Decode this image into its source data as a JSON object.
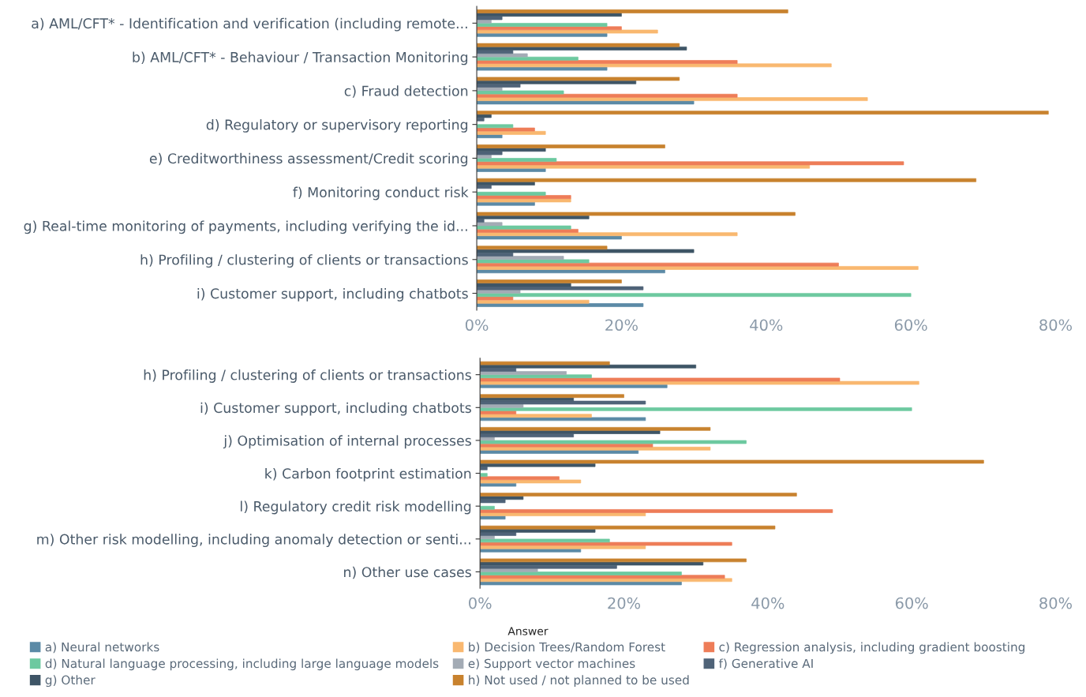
{
  "chart_data": [
    {
      "type": "bar",
      "orientation": "horizontal",
      "categories": [
        "a) AML/CFT* - Identification and verification (including remote...",
        "b) AML/CFT* - Behaviour / Transaction Monitoring",
        "c) Fraud detection",
        "d) Regulatory or supervisory reporting",
        "e) Creditworthiness assessment/Credit scoring",
        "f) Monitoring conduct risk",
        "g) Real-time monitoring of payments, including verifying the id...",
        "h) Profiling / clustering of clients or transactions",
        "i) Customer support, including chatbots"
      ],
      "xlim": [
        0,
        80
      ],
      "xticks": [
        {
          "value": 0,
          "label": "0%"
        },
        {
          "value": 20,
          "label": "20%"
        },
        {
          "value": 40,
          "label": "40%"
        },
        {
          "value": 60,
          "label": "60%"
        },
        {
          "value": 80,
          "label": "80%"
        }
      ],
      "grid": false,
      "series": [
        {
          "color": "#5b8aa6",
          "values": [
            18,
            18,
            30,
            3.5,
            9.5,
            8,
            20,
            26,
            23
          ]
        },
        {
          "color": "#f9b870",
          "values": [
            25,
            49,
            54,
            9.5,
            46,
            13,
            36,
            61,
            15.5
          ]
        },
        {
          "color": "#ee7d58",
          "values": [
            20,
            36,
            36,
            8,
            59,
            13,
            14,
            50,
            5
          ]
        },
        {
          "color": "#6dc9a0",
          "values": [
            18,
            14,
            12,
            5,
            11,
            9.5,
            13,
            15.5,
            60
          ]
        },
        {
          "color": "#a3abb5",
          "values": [
            2,
            7,
            3.5,
            0,
            2,
            0,
            3.5,
            12,
            6
          ]
        },
        {
          "color": "#4f6378",
          "values": [
            3.5,
            5,
            6,
            1,
            3.5,
            2,
            1,
            5,
            23
          ]
        },
        {
          "color": "#3e5566",
          "values": [
            20,
            29,
            22,
            2,
            9.5,
            8,
            15.5,
            30,
            13
          ]
        },
        {
          "color": "#c8822e",
          "values": [
            43,
            28,
            28,
            79,
            26,
            69,
            44,
            18,
            20
          ]
        }
      ]
    },
    {
      "type": "bar",
      "orientation": "horizontal",
      "legend": "bottom",
      "legend_title": "Answer",
      "categories": [
        "h) Profiling / clustering of clients or transactions",
        "i) Customer support, including chatbots",
        "j) Optimisation of internal processes",
        "k) Carbon footprint estimation",
        "l) Regulatory credit risk modelling",
        "m) Other risk modelling, including anomaly detection or senti...",
        "n) Other use cases"
      ],
      "xlim": [
        0,
        80
      ],
      "xticks": [
        {
          "value": 0,
          "label": "0%"
        },
        {
          "value": 20,
          "label": "20%"
        },
        {
          "value": 40,
          "label": "40%"
        },
        {
          "value": 60,
          "label": "60%"
        },
        {
          "value": 80,
          "label": "80%"
        }
      ],
      "grid": false,
      "series": [
        {
          "name": "a) Neural networks",
          "color": "#5b8aa6",
          "values": [
            26,
            23,
            22,
            5,
            3.5,
            14,
            28
          ]
        },
        {
          "name": "b) Decision Trees/Random Forest",
          "color": "#f9b870",
          "values": [
            61,
            15.5,
            32,
            14,
            23,
            23,
            35
          ]
        },
        {
          "name": "c) Regression analysis, including gradient boosting",
          "color": "#ee7d58",
          "values": [
            50,
            5,
            24,
            11,
            49,
            35,
            34
          ]
        },
        {
          "name": "d) Natural language processing, including large language models",
          "color": "#6dc9a0",
          "values": [
            15.5,
            60,
            37,
            1,
            2,
            18,
            28
          ]
        },
        {
          "name": "e) Support vector machines",
          "color": "#a3abb5",
          "values": [
            12,
            6,
            2,
            0,
            0,
            2,
            8
          ]
        },
        {
          "name": "f) Generative AI",
          "color": "#4f6378",
          "values": [
            5,
            23,
            13,
            1,
            3.5,
            5,
            19
          ]
        },
        {
          "name": "g) Other",
          "color": "#3e5566",
          "values": [
            30,
            13,
            25,
            16,
            6,
            16,
            31
          ]
        },
        {
          "name": "h) Not used / not planned to be used",
          "color": "#c8822e",
          "values": [
            18,
            20,
            32,
            70,
            44,
            41,
            37
          ]
        }
      ]
    }
  ]
}
